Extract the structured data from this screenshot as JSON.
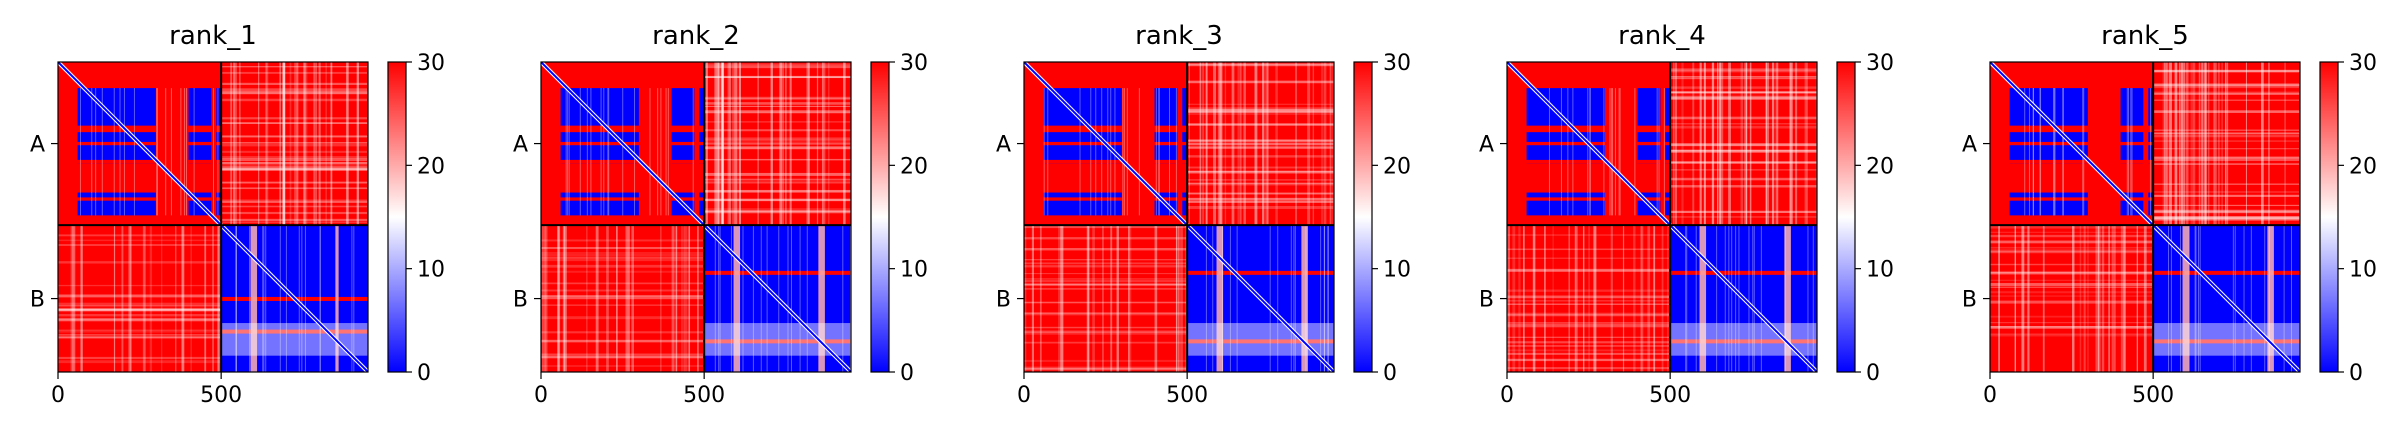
{
  "chart_data": [
    {
      "type": "heatmap",
      "title": "rank_1",
      "xticks": [
        "0",
        "500"
      ],
      "yticks": [
        "A",
        "B"
      ],
      "colorbar_ticks": [
        "0",
        "10",
        "20",
        "30"
      ],
      "colorbar_range": [
        0,
        30
      ],
      "colormap": [
        "#0000ff",
        "#ffffff",
        "#ff0000"
      ],
      "chain_boundary": 500,
      "length": 950,
      "blue_x_blocks_chainA": [
        [
          60,
          300
        ],
        [
          400,
          500
        ]
      ],
      "blue_y_blocks_chainA": [
        [
          80,
          310
        ],
        [
          400,
          470
        ]
      ],
      "blue_x_blocks_chainB": [
        [
          500,
          950
        ]
      ],
      "red_y_bands_chainB": [
        [
          720,
          730
        ],
        [
          820,
          830
        ]
      ],
      "red_x_bands_chainB": [
        [
          590,
          610
        ],
        [
          850,
          860
        ]
      ],
      "band_seed": 11
    },
    {
      "type": "heatmap",
      "title": "rank_2",
      "xticks": [
        "0",
        "500"
      ],
      "yticks": [
        "A",
        "B"
      ],
      "colorbar_ticks": [
        "0",
        "10",
        "20",
        "30"
      ],
      "colorbar_range": [
        0,
        30
      ],
      "colormap": [
        "#0000ff",
        "#ffffff",
        "#ff0000"
      ],
      "chain_boundary": 500,
      "length": 950,
      "blue_x_blocks_chainA": [
        [
          60,
          300
        ],
        [
          400,
          500
        ]
      ],
      "blue_y_blocks_chainA": [
        [
          80,
          310
        ],
        [
          400,
          470
        ]
      ],
      "blue_x_blocks_chainB": [
        [
          500,
          950
        ]
      ],
      "red_y_bands_chainB": [
        [
          640,
          650
        ],
        [
          850,
          860
        ]
      ],
      "red_x_bands_chainB": [
        [
          590,
          610
        ],
        [
          850,
          870
        ]
      ],
      "band_seed": 23
    },
    {
      "type": "heatmap",
      "title": "rank_3",
      "xticks": [
        "0",
        "500"
      ],
      "yticks": [
        "A",
        "B"
      ],
      "colorbar_ticks": [
        "0",
        "10",
        "20",
        "30"
      ],
      "colorbar_range": [
        0,
        30
      ],
      "colormap": [
        "#0000ff",
        "#ffffff",
        "#ff0000"
      ],
      "chain_boundary": 500,
      "length": 950,
      "blue_x_blocks_chainA": [
        [
          60,
          300
        ],
        [
          400,
          500
        ]
      ],
      "blue_y_blocks_chainA": [
        [
          80,
          310
        ],
        [
          400,
          470
        ]
      ],
      "blue_x_blocks_chainB": [
        [
          500,
          950
        ]
      ],
      "red_y_bands_chainB": [
        [
          640,
          650
        ],
        [
          850,
          860
        ]
      ],
      "red_x_bands_chainB": [
        [
          590,
          610
        ],
        [
          850,
          870
        ]
      ],
      "band_seed": 37
    },
    {
      "type": "heatmap",
      "title": "rank_4",
      "xticks": [
        "0",
        "500"
      ],
      "yticks": [
        "A",
        "B"
      ],
      "colorbar_ticks": [
        "0",
        "10",
        "20",
        "30"
      ],
      "colorbar_range": [
        0,
        30
      ],
      "colormap": [
        "#0000ff",
        "#ffffff",
        "#ff0000"
      ],
      "chain_boundary": 500,
      "length": 950,
      "blue_x_blocks_chainA": [
        [
          60,
          300
        ],
        [
          400,
          500
        ]
      ],
      "blue_y_blocks_chainA": [
        [
          80,
          310
        ],
        [
          400,
          470
        ]
      ],
      "blue_x_blocks_chainB": [
        [
          500,
          950
        ]
      ],
      "red_y_bands_chainB": [
        [
          640,
          650
        ],
        [
          850,
          860
        ]
      ],
      "red_x_bands_chainB": [
        [
          590,
          610
        ],
        [
          850,
          870
        ]
      ],
      "band_seed": 41
    },
    {
      "type": "heatmap",
      "title": "rank_5",
      "xticks": [
        "0",
        "500"
      ],
      "yticks": [
        "A",
        "B"
      ],
      "colorbar_ticks": [
        "0",
        "10",
        "20",
        "30"
      ],
      "colorbar_range": [
        0,
        30
      ],
      "colormap": [
        "#0000ff",
        "#ffffff",
        "#ff0000"
      ],
      "chain_boundary": 500,
      "length": 950,
      "blue_x_blocks_chainA": [
        [
          60,
          300
        ],
        [
          400,
          500
        ]
      ],
      "blue_y_blocks_chainA": [
        [
          80,
          310
        ],
        [
          400,
          470
        ]
      ],
      "blue_x_blocks_chainB": [
        [
          500,
          950
        ]
      ],
      "red_y_bands_chainB": [
        [
          640,
          650
        ],
        [
          850,
          860
        ]
      ],
      "red_x_bands_chainB": [
        [
          590,
          610
        ],
        [
          850,
          870
        ]
      ],
      "band_seed": 53
    }
  ]
}
